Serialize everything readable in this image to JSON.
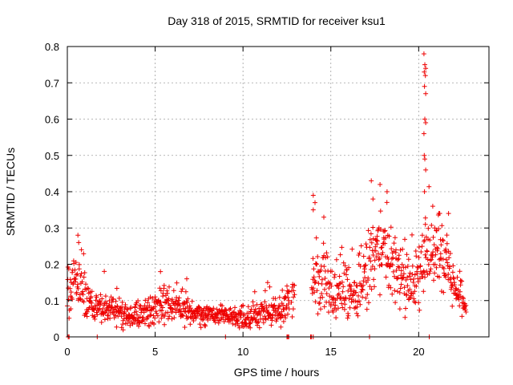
{
  "chart_data": {
    "type": "scatter",
    "title": "Day 318 of 2015, SRMTID for receiver ksu1",
    "xlabel": "GPS time / hours",
    "ylabel": "SRMTID / TECUs",
    "xlim": [
      0,
      24
    ],
    "ylim": [
      0,
      0.8
    ],
    "xticks": [
      0,
      5,
      10,
      15,
      20
    ],
    "yticks": [
      0,
      0.1,
      0.2,
      0.3,
      0.4,
      0.5,
      0.6,
      0.7,
      0.8
    ],
    "xtick_labels": [
      "0",
      "5",
      "10",
      "15",
      "20"
    ],
    "ytick_labels": [
      "0",
      "0.1",
      "0.2",
      "0.3",
      "0.4",
      "0.5",
      "0.6",
      "0.7",
      "0.8"
    ],
    "grid": true,
    "marker": "plus",
    "color": "#ee0000",
    "series": [
      {
        "name": "ksu1",
        "envelope": [
          {
            "x": 0.0,
            "base": 0.12,
            "spread": 0.1,
            "max": 0.28
          },
          {
            "x": 0.5,
            "base": 0.15,
            "spread": 0.08,
            "max": 0.28
          },
          {
            "x": 1.0,
            "base": 0.12,
            "spread": 0.08,
            "max": 0.22
          },
          {
            "x": 1.5,
            "base": 0.07,
            "spread": 0.04,
            "max": 0.12
          },
          {
            "x": 2.0,
            "base": 0.08,
            "spread": 0.04,
            "max": 0.2
          },
          {
            "x": 3.0,
            "base": 0.07,
            "spread": 0.04,
            "max": 0.12
          },
          {
            "x": 3.5,
            "base": 0.05,
            "spread": 0.03,
            "max": 0.1
          },
          {
            "x": 4.5,
            "base": 0.06,
            "spread": 0.04,
            "max": 0.12
          },
          {
            "x": 5.5,
            "base": 0.09,
            "spread": 0.05,
            "max": 0.18
          },
          {
            "x": 6.5,
            "base": 0.08,
            "spread": 0.05,
            "max": 0.16
          },
          {
            "x": 7.5,
            "base": 0.06,
            "spread": 0.03,
            "max": 0.1
          },
          {
            "x": 9.0,
            "base": 0.06,
            "spread": 0.03,
            "max": 0.1
          },
          {
            "x": 10.0,
            "base": 0.05,
            "spread": 0.03,
            "max": 0.1
          },
          {
            "x": 11.5,
            "base": 0.07,
            "spread": 0.04,
            "max": 0.16
          },
          {
            "x": 12.2,
            "base": 0.07,
            "spread": 0.04,
            "max": 0.14
          },
          {
            "x": 12.6,
            "base": 0.1,
            "spread": 0.05,
            "max": 0.14
          },
          {
            "x": 14.0,
            "base": 0.15,
            "spread": 0.1,
            "max": 0.4
          },
          {
            "x": 14.5,
            "base": 0.15,
            "spread": 0.1,
            "max": 0.34
          },
          {
            "x": 15.5,
            "base": 0.13,
            "spread": 0.08,
            "max": 0.28
          },
          {
            "x": 16.5,
            "base": 0.11,
            "spread": 0.06,
            "max": 0.24
          },
          {
            "x": 17.5,
            "base": 0.22,
            "spread": 0.12,
            "max": 0.43
          },
          {
            "x": 18.0,
            "base": 0.24,
            "spread": 0.1,
            "max": 0.44
          },
          {
            "x": 18.5,
            "base": 0.18,
            "spread": 0.1,
            "max": 0.35
          },
          {
            "x": 19.5,
            "base": 0.12,
            "spread": 0.07,
            "max": 0.26
          },
          {
            "x": 20.0,
            "base": 0.17,
            "spread": 0.1,
            "max": 0.35
          },
          {
            "x": 20.4,
            "base": 0.22,
            "spread": 0.1,
            "max": 0.78
          },
          {
            "x": 21.0,
            "base": 0.24,
            "spread": 0.1,
            "max": 0.36
          },
          {
            "x": 21.5,
            "base": 0.2,
            "spread": 0.08,
            "max": 0.34
          },
          {
            "x": 22.0,
            "base": 0.14,
            "spread": 0.06,
            "max": 0.26
          },
          {
            "x": 22.7,
            "base": 0.08,
            "spread": 0.03,
            "max": 0.12
          }
        ],
        "gaps": [
          [
            12.65,
            12.75
          ],
          [
            12.95,
            13.9
          ]
        ],
        "spike_points": [
          [
            20.3,
            0.78
          ],
          [
            20.35,
            0.75
          ],
          [
            20.4,
            0.74
          ],
          [
            20.32,
            0.73
          ],
          [
            20.38,
            0.72
          ],
          [
            20.33,
            0.69
          ],
          [
            20.4,
            0.67
          ],
          [
            20.35,
            0.6
          ],
          [
            20.4,
            0.59
          ],
          [
            20.3,
            0.56
          ],
          [
            20.32,
            0.5
          ],
          [
            20.35,
            0.49
          ],
          [
            20.4,
            0.46
          ],
          [
            20.33,
            0.4
          ],
          [
            20.38,
            0.31
          ],
          [
            17.3,
            0.43
          ],
          [
            17.8,
            0.42
          ],
          [
            18.2,
            0.4
          ],
          [
            17.4,
            0.38
          ],
          [
            14.0,
            0.39
          ],
          [
            14.1,
            0.37
          ],
          [
            14.0,
            0.35
          ],
          [
            14.6,
            0.33
          ],
          [
            20.8,
            0.36
          ],
          [
            21.2,
            0.34
          ],
          [
            21.7,
            0.34
          ],
          [
            0.6,
            0.28
          ],
          [
            0.65,
            0.26
          ],
          [
            5.3,
            0.18
          ],
          [
            6.8,
            0.16
          ],
          [
            12.5,
            0.14
          ],
          [
            12.6,
            0.1
          ]
        ],
        "zero_points": [
          0.05,
          0.1,
          1.7,
          9.0,
          12.5,
          12.55,
          12.6,
          13.85,
          13.9,
          14.0,
          17.2,
          20.6
        ]
      }
    ]
  }
}
